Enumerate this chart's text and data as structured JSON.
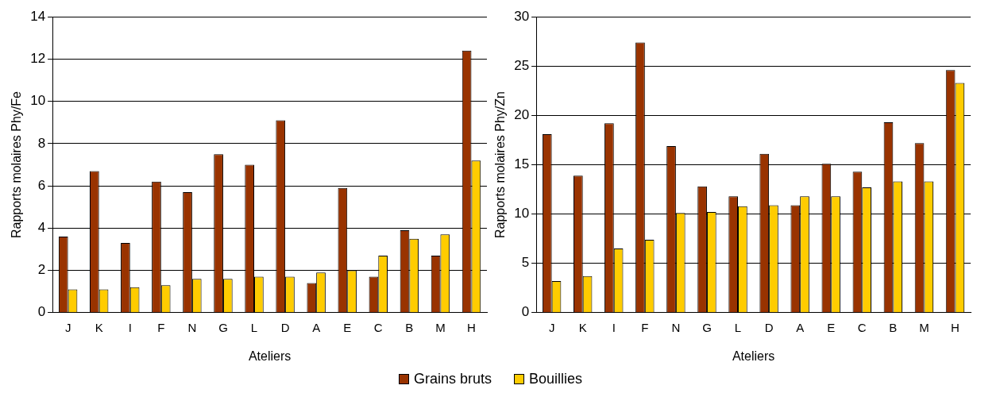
{
  "chart_data": [
    {
      "type": "bar",
      "xlabel": "Ateliers",
      "ylabel": "Rapports molaires Phy/Fe",
      "categories": [
        "J",
        "K",
        "I",
        "F",
        "N",
        "G",
        "L",
        "D",
        "A",
        "E",
        "C",
        "B",
        "M",
        "H"
      ],
      "ylim": [
        0,
        14
      ],
      "yticks": [
        0,
        2,
        4,
        6,
        8,
        10,
        12,
        14
      ],
      "grid": "y",
      "legend": "bottom",
      "series": [
        {
          "name": "Grains bruts",
          "color": "#993300",
          "values": [
            3.6,
            6.7,
            3.3,
            6.2,
            5.7,
            7.5,
            7.0,
            9.1,
            1.4,
            5.9,
            1.7,
            3.9,
            2.7,
            12.4
          ]
        },
        {
          "name": "Bouillies",
          "color": "#ffcc00",
          "values": [
            1.1,
            1.1,
            1.2,
            1.3,
            1.6,
            1.6,
            1.7,
            1.7,
            1.9,
            2.0,
            2.7,
            3.5,
            3.7,
            7.2
          ]
        }
      ]
    },
    {
      "type": "bar",
      "xlabel": "Ateliers",
      "ylabel": "Rapports molaires Phy/Zn",
      "categories": [
        "J",
        "K",
        "I",
        "F",
        "N",
        "G",
        "L",
        "D",
        "A",
        "E",
        "C",
        "B",
        "M",
        "H"
      ],
      "ylim": [
        0,
        30
      ],
      "yticks": [
        0,
        5,
        10,
        15,
        20,
        25,
        30
      ],
      "grid": "y",
      "series": [
        {
          "color": "#993300",
          "values": [
            18.1,
            13.9,
            19.2,
            27.4,
            16.9,
            12.8,
            11.8,
            16.1,
            10.9,
            15.1,
            14.3,
            19.3,
            17.2,
            24.6
          ]
        },
        {
          "color": "#ffcc00",
          "values": [
            3.2,
            3.7,
            6.5,
            7.4,
            10.1,
            10.2,
            10.8,
            10.9,
            11.8,
            11.8,
            12.7,
            13.3,
            13.3,
            23.3
          ]
        }
      ]
    }
  ]
}
